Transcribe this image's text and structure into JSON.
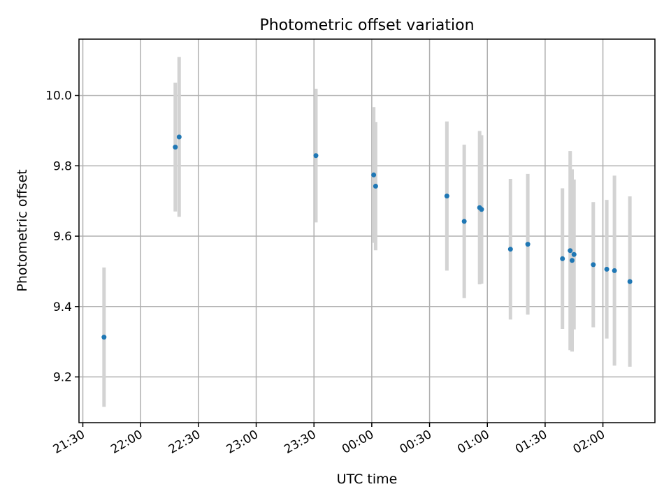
{
  "chart_data": {
    "type": "scatter",
    "title": "Photometric offset variation",
    "xlabel": "UTC time",
    "ylabel": "Photometric offset",
    "x_axis_type": "time",
    "xlim": [
      "21:28",
      "02:27"
    ],
    "ylim": [
      9.07,
      10.16
    ],
    "x_ticks": [
      "21:30",
      "22:00",
      "22:30",
      "23:00",
      "23:30",
      "00:00",
      "00:30",
      "01:00",
      "01:30",
      "02:00"
    ],
    "y_ticks": [
      9.2,
      9.4,
      9.6,
      9.8,
      10.0
    ],
    "y_tick_labels": [
      "9.2",
      "9.4",
      "9.6",
      "9.8",
      "10.0"
    ],
    "grid": true,
    "marker_color": "#1f77b4",
    "errorbar_color": "#d3d3d3",
    "points": [
      {
        "x": "21:41",
        "y": 9.313,
        "yerr": 0.198
      },
      {
        "x": "22:18",
        "y": 9.853,
        "yerr": 0.183
      },
      {
        "x": "22:20",
        "y": 9.882,
        "yerr": 0.227
      },
      {
        "x": "23:31",
        "y": 9.829,
        "yerr": 0.19
      },
      {
        "x": "00:01",
        "y": 9.774,
        "yerr": 0.193
      },
      {
        "x": "00:02",
        "y": 9.742,
        "yerr": 0.182
      },
      {
        "x": "00:39",
        "y": 9.714,
        "yerr": 0.212
      },
      {
        "x": "00:48",
        "y": 9.642,
        "yerr": 0.218
      },
      {
        "x": "00:56",
        "y": 9.681,
        "yerr": 0.218
      },
      {
        "x": "00:57",
        "y": 9.676,
        "yerr": 0.211
      },
      {
        "x": "01:12",
        "y": 9.563,
        "yerr": 0.2
      },
      {
        "x": "01:21",
        "y": 9.577,
        "yerr": 0.2
      },
      {
        "x": "01:39",
        "y": 9.536,
        "yerr": 0.2
      },
      {
        "x": "01:43",
        "y": 9.559,
        "yerr": 0.283
      },
      {
        "x": "01:44",
        "y": 9.531,
        "yerr": 0.259
      },
      {
        "x": "01:45",
        "y": 9.548,
        "yerr": 0.213
      },
      {
        "x": "01:55",
        "y": 9.519,
        "yerr": 0.178
      },
      {
        "x": "02:02",
        "y": 9.506,
        "yerr": 0.197
      },
      {
        "x": "02:06",
        "y": 9.502,
        "yerr": 0.27
      },
      {
        "x": "02:14",
        "y": 9.471,
        "yerr": 0.242
      }
    ]
  }
}
